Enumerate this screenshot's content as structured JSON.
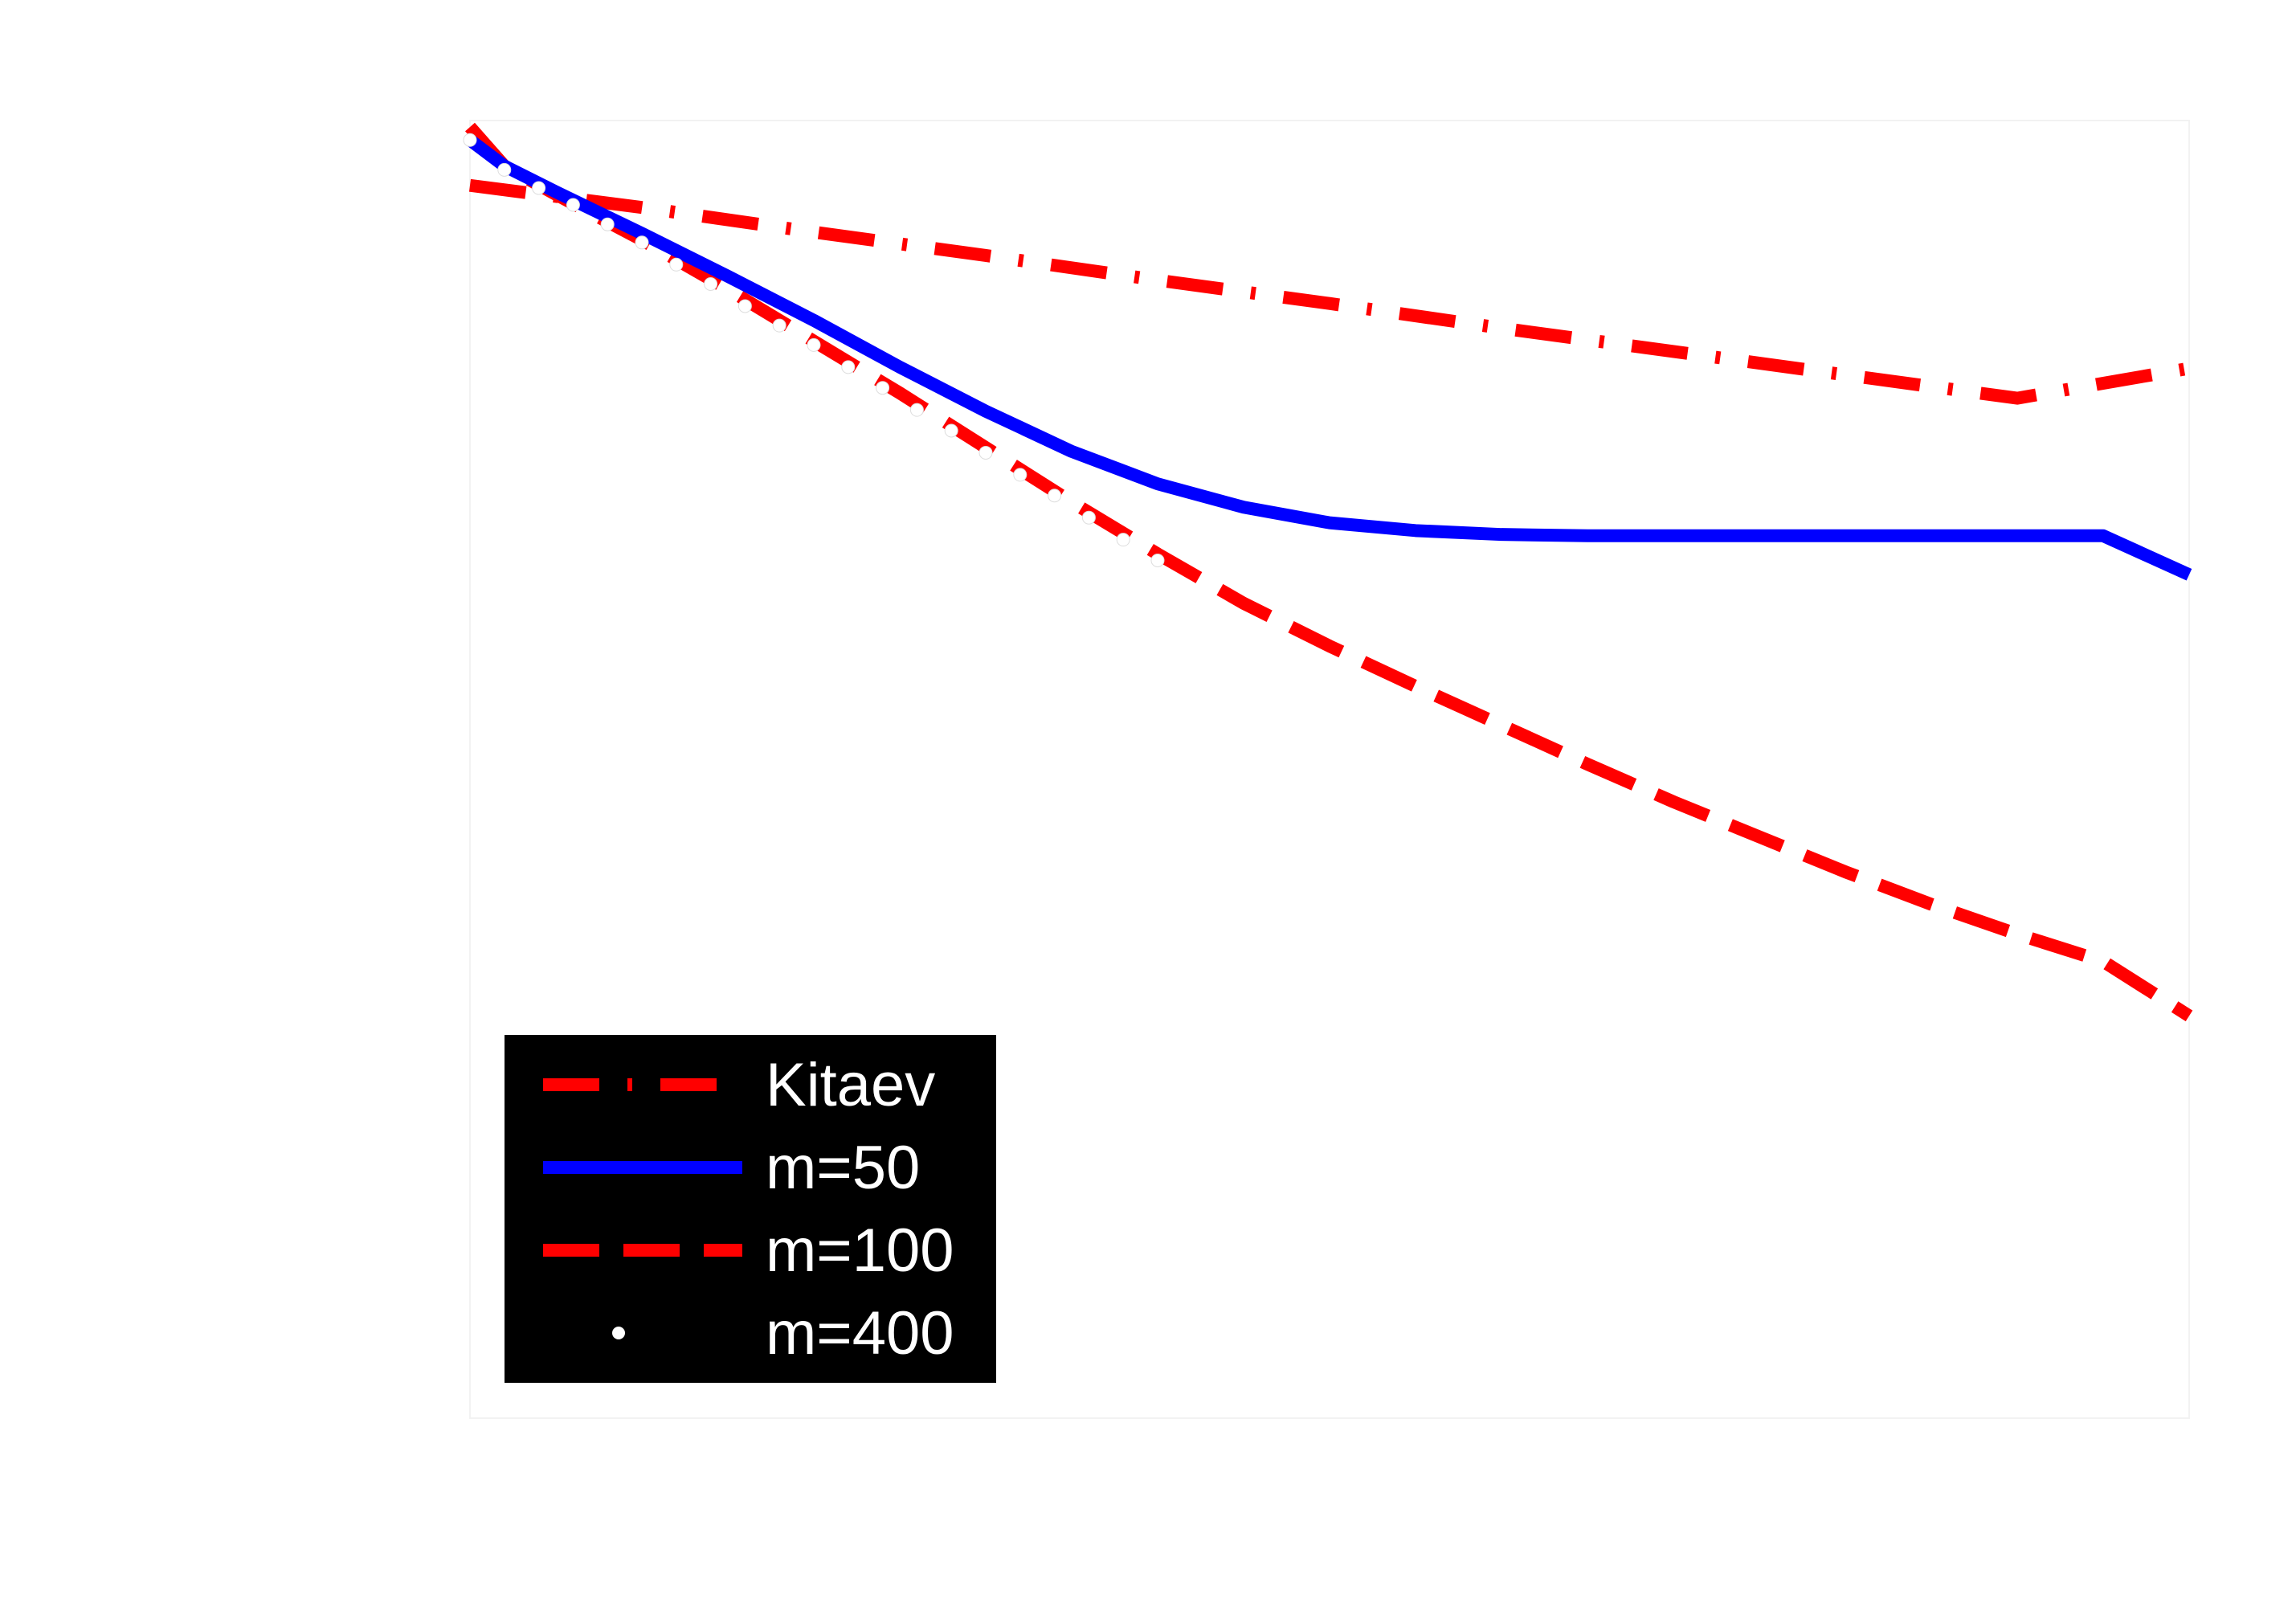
{
  "chart_data": {
    "type": "line",
    "title": "",
    "xlabel": "",
    "ylabel": "",
    "xlim": [
      0,
      1
    ],
    "ylim": [
      0,
      1
    ],
    "grid": false,
    "legend_position": "bottom-left",
    "colors": {
      "background": "#ffffff",
      "legend_bg": "#000000",
      "legend_text": "#ffffff",
      "red": "#ff0000",
      "blue": "#0000ff",
      "white": "#ffffff"
    },
    "series": [
      {
        "name": "Kitaev",
        "style": "dash-dot",
        "color": "#ff0000",
        "x": [
          0.0,
          0.1,
          0.2,
          0.3,
          0.4,
          0.5,
          0.6,
          0.7,
          0.8,
          0.9,
          1.0
        ],
        "y": [
          0.95,
          0.933,
          0.914,
          0.896,
          0.877,
          0.859,
          0.84,
          0.822,
          0.804,
          0.786,
          0.809
        ]
      },
      {
        "name": "m=50",
        "style": "solid",
        "color": "#0000ff",
        "x": [
          0.0,
          0.02,
          0.05,
          0.1,
          0.15,
          0.2,
          0.25,
          0.3,
          0.35,
          0.4,
          0.45,
          0.5,
          0.55,
          0.6,
          0.65,
          0.7,
          0.75,
          0.8,
          0.85,
          0.9,
          0.95,
          1.0
        ],
        "y": [
          0.985,
          0.965,
          0.945,
          0.913,
          0.88,
          0.846,
          0.81,
          0.776,
          0.745,
          0.72,
          0.702,
          0.69,
          0.684,
          0.681,
          0.68,
          0.68,
          0.68,
          0.68,
          0.68,
          0.68,
          0.68,
          0.65
        ]
      },
      {
        "name": "m=100",
        "style": "dashed",
        "color": "#ff0000",
        "x": [
          0.0,
          0.02,
          0.05,
          0.1,
          0.15,
          0.2,
          0.25,
          0.3,
          0.35,
          0.4,
          0.45,
          0.5,
          0.55,
          0.6,
          0.65,
          0.7,
          0.75,
          0.8,
          0.85,
          0.9,
          0.95,
          1.0
        ],
        "y": [
          0.995,
          0.965,
          0.943,
          0.908,
          0.87,
          0.83,
          0.79,
          0.748,
          0.706,
          0.666,
          0.628,
          0.595,
          0.564,
          0.534,
          0.504,
          0.475,
          0.448,
          0.421,
          0.396,
          0.373,
          0.352,
          0.31
        ]
      },
      {
        "name": "m=400",
        "style": "dots",
        "color": "#ffffff",
        "x": [
          0.0,
          0.02,
          0.04,
          0.06,
          0.08,
          0.1,
          0.12,
          0.14,
          0.16,
          0.18,
          0.2,
          0.22,
          0.24,
          0.26,
          0.28,
          0.3,
          0.32,
          0.34,
          0.36,
          0.38,
          0.4
        ],
        "y": [
          0.985,
          0.962,
          0.948,
          0.935,
          0.92,
          0.906,
          0.889,
          0.874,
          0.857,
          0.842,
          0.827,
          0.81,
          0.794,
          0.777,
          0.761,
          0.744,
          0.727,
          0.711,
          0.694,
          0.677,
          0.661
        ]
      }
    ]
  }
}
